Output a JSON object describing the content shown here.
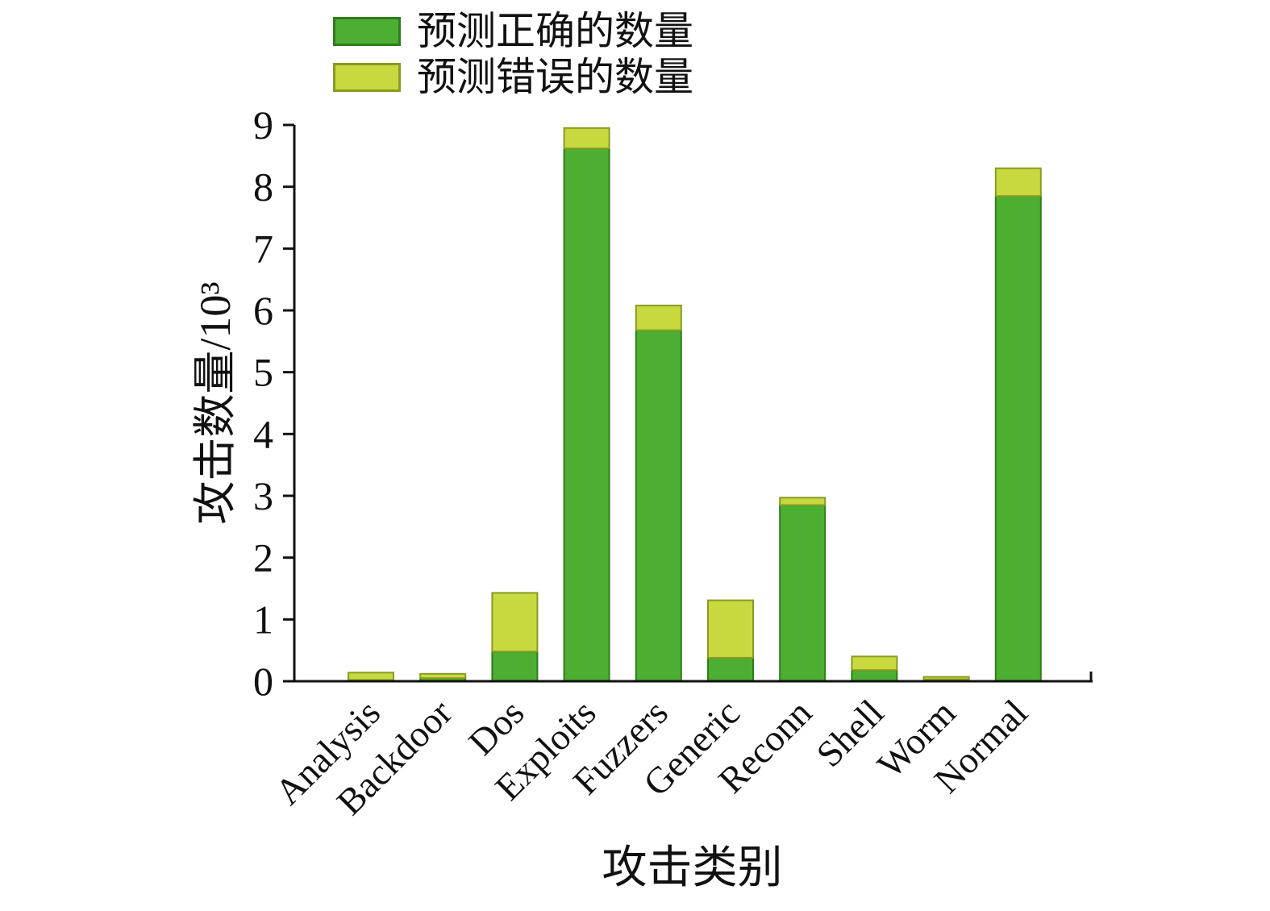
{
  "legend": {
    "items": [
      {
        "label": "预测正确的数量",
        "color": "#4caf32",
        "border": "#2e7d1c"
      },
      {
        "label": "预测错误的数量",
        "color": "#c8d93f",
        "border": "#8a9a23"
      }
    ]
  },
  "chart_data": {
    "type": "bar",
    "stacked": true,
    "title": "",
    "xlabel": "攻击类别",
    "ylabel": "攻击数量/10³",
    "ylim": [
      0,
      9
    ],
    "yticks": [
      0,
      1,
      2,
      3,
      4,
      5,
      6,
      7,
      8,
      9
    ],
    "grid": false,
    "legend_position": "top-left",
    "categories": [
      "Analysis",
      "Backdoor",
      "Dos",
      "Exploits",
      "Fuzzers",
      "Generic",
      "Reconn",
      "Shell",
      "Worm",
      "Normal"
    ],
    "series": [
      {
        "name": "预测正确的数量",
        "color": "#4caf32",
        "border": "#2e7d1c",
        "values": [
          0.02,
          0.05,
          0.48,
          8.62,
          5.68,
          0.38,
          2.85,
          0.18,
          0.03,
          7.85
        ]
      },
      {
        "name": "预测错误的数量",
        "color": "#c8d93f",
        "border": "#8a9a23",
        "values": [
          0.12,
          0.07,
          0.95,
          0.33,
          0.4,
          0.93,
          0.12,
          0.22,
          0.04,
          0.45
        ]
      }
    ]
  }
}
